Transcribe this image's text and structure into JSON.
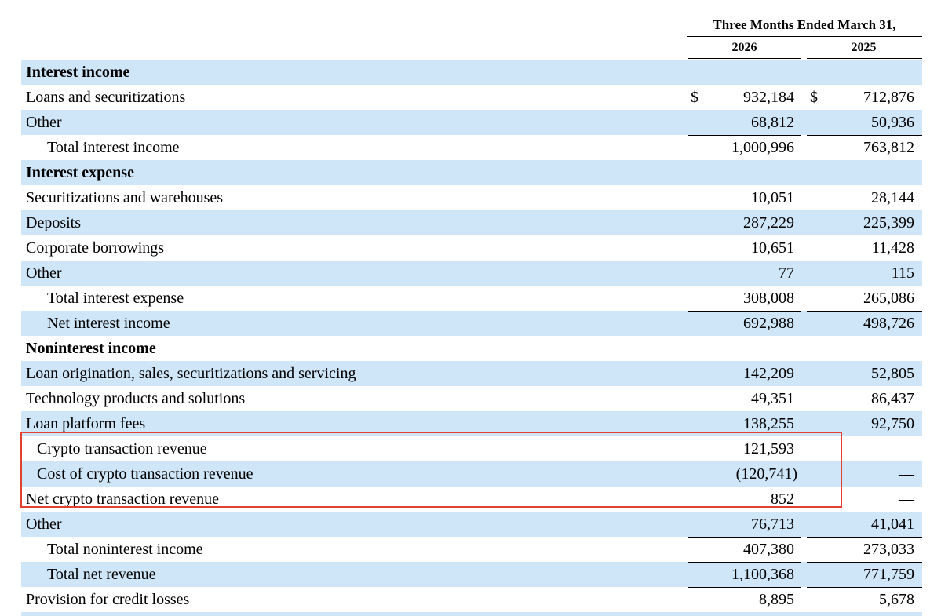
{
  "header": {
    "period_title": "Three Months Ended March 31,",
    "year_1": "2026",
    "year_2": "2025"
  },
  "rows": [
    {
      "label": "Interest income",
      "style": "bold",
      "shaded": true,
      "v1": "",
      "v2": ""
    },
    {
      "label": "Loans and securitizations",
      "style": "normal",
      "shaded": false,
      "cur1": "$",
      "v1": "932,184",
      "cur2": "$",
      "v2": "712,876"
    },
    {
      "label": "Other",
      "style": "normal",
      "shaded": true,
      "v1": "68,812",
      "v2": "50,936"
    },
    {
      "label": "Total interest income",
      "style": "indent2",
      "shaded": false,
      "v1": "1,000,996",
      "v2": "763,812",
      "rule": true
    },
    {
      "label": "Interest expense",
      "style": "bold",
      "shaded": true,
      "v1": "",
      "v2": ""
    },
    {
      "label": "Securitizations and warehouses",
      "style": "normal",
      "shaded": false,
      "v1": "10,051",
      "v2": "28,144"
    },
    {
      "label": "Deposits",
      "style": "normal",
      "shaded": true,
      "v1": "287,229",
      "v2": "225,399"
    },
    {
      "label": "Corporate borrowings",
      "style": "normal",
      "shaded": false,
      "v1": "10,651",
      "v2": "11,428"
    },
    {
      "label": "Other",
      "style": "normal",
      "shaded": true,
      "v1": "77",
      "v2": "115"
    },
    {
      "label": "Total interest expense",
      "style": "indent2",
      "shaded": false,
      "v1": "308,008",
      "v2": "265,086",
      "rule": true
    },
    {
      "label": "Net interest income",
      "style": "indent2",
      "shaded": true,
      "v1": "692,988",
      "v2": "498,726",
      "rule": true
    },
    {
      "label": "Noninterest income",
      "style": "bold",
      "shaded": false,
      "v1": "",
      "v2": ""
    },
    {
      "label": "Loan origination, sales, securitizations and servicing",
      "style": "normal",
      "shaded": true,
      "v1": "142,209",
      "v2": "52,805"
    },
    {
      "label": "Technology products and solutions",
      "style": "normal",
      "shaded": false,
      "v1": "49,351",
      "v2": "86,437"
    },
    {
      "label": "Loan platform fees",
      "style": "normal",
      "shaded": true,
      "v1": "138,255",
      "v2": "92,750"
    },
    {
      "label": "Crypto transaction revenue",
      "style": "indent1",
      "shaded": false,
      "v1": "121,593",
      "v2": "—"
    },
    {
      "label": "Cost of crypto transaction revenue",
      "style": "indent1",
      "shaded": true,
      "v1": "(120,741)",
      "v2": "—",
      "paren": true
    },
    {
      "label": "Net crypto transaction revenue",
      "style": "normal",
      "shaded": false,
      "v1": "852",
      "v2": "—",
      "rule": true
    },
    {
      "label": "Other",
      "style": "normal",
      "shaded": true,
      "v1": "76,713",
      "v2": "41,041"
    },
    {
      "label": "Total noninterest income",
      "style": "indent2",
      "shaded": false,
      "v1": "407,380",
      "v2": "273,033",
      "rule": true
    },
    {
      "label": "Total net revenue",
      "style": "indent2",
      "shaded": true,
      "v1": "1,100,368",
      "v2": "771,759",
      "rule": true
    },
    {
      "label": "Provision for credit losses",
      "style": "normal",
      "shaded": false,
      "v1": "8,895",
      "v2": "5,678",
      "rule": true
    }
  ],
  "colors": {
    "row_shade": "#cfe6f9",
    "highlight_box": "#e2412f"
  }
}
